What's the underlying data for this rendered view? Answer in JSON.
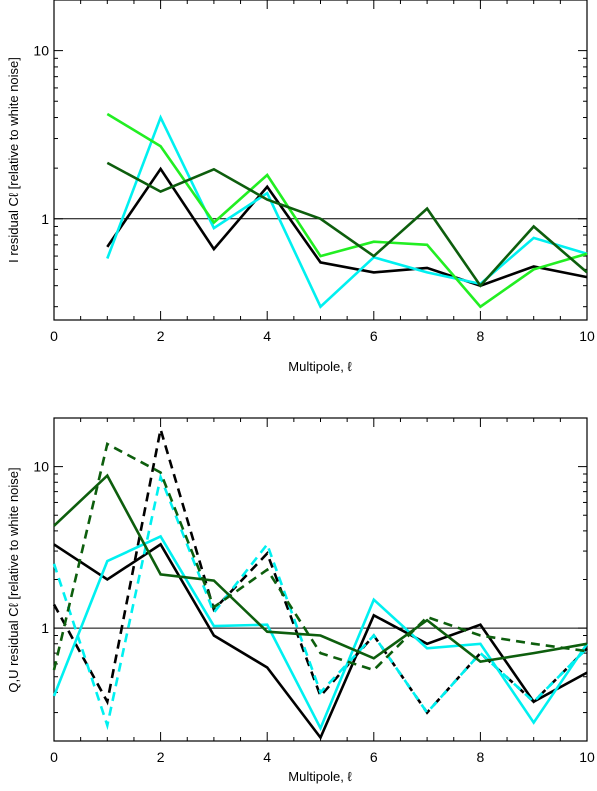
{
  "chart_data": [
    {
      "type": "line",
      "ylabel": "I residual Cℓ [relative to white noise]",
      "xlabel": "Multipole, ℓ",
      "xlim": [
        0,
        10
      ],
      "ylim": [
        0.25,
        20
      ],
      "yscale": "log",
      "xticks": [
        0,
        2,
        4,
        6,
        8,
        10
      ],
      "xtick_labels": [
        "0",
        "2",
        "4",
        "6",
        "8",
        "10"
      ],
      "yticks": [
        1,
        10
      ],
      "ytick_labels": [
        "1",
        "10"
      ],
      "reference_line": 1,
      "grid": false,
      "series": [
        {
          "color": "#000000",
          "dash": false,
          "x": [
            1,
            2,
            3,
            4,
            5,
            6,
            7,
            8,
            9,
            10
          ],
          "y": [
            0.68,
            1.98,
            0.66,
            1.55,
            0.55,
            0.48,
            0.51,
            0.4,
            0.52,
            0.45
          ]
        },
        {
          "color": "#00f0f0",
          "dash": false,
          "x": [
            1,
            2,
            3,
            4,
            5,
            6,
            7,
            8,
            9,
            10
          ],
          "y": [
            0.58,
            4.0,
            0.88,
            1.42,
            0.3,
            0.59,
            0.48,
            0.41,
            0.77,
            0.62
          ]
        },
        {
          "color": "#22ee22",
          "dash": false,
          "x": [
            1,
            2,
            3,
            4,
            5,
            6,
            7,
            8,
            9,
            10
          ],
          "y": [
            4.2,
            2.7,
            0.95,
            1.82,
            0.6,
            0.73,
            0.7,
            0.3,
            0.5,
            0.62
          ]
        },
        {
          "color": "#0d5e0d",
          "dash": false,
          "x": [
            1,
            2,
            3,
            4,
            5,
            6,
            7,
            8,
            9,
            10
          ],
          "y": [
            2.15,
            1.45,
            1.97,
            1.3,
            1.0,
            0.6,
            1.15,
            0.4,
            0.9,
            0.48
          ]
        }
      ]
    },
    {
      "type": "line",
      "ylabel": "Q,U residual Cℓ [relative to white noise]",
      "xlabel": "Multipole, ℓ",
      "xlim": [
        0,
        10
      ],
      "ylim": [
        0.2,
        20
      ],
      "yscale": "log",
      "xticks": [
        0,
        2,
        4,
        6,
        8,
        10
      ],
      "xtick_labels": [
        "0",
        "2",
        "4",
        "6",
        "8",
        "10"
      ],
      "yticks": [
        1,
        10
      ],
      "ytick_labels": [
        "1",
        "10"
      ],
      "reference_line": 1,
      "grid": false,
      "series": [
        {
          "color": "#000000",
          "dash": false,
          "x": [
            0,
            1,
            2,
            3,
            4,
            5,
            6,
            7,
            8,
            9,
            10
          ],
          "y": [
            3.3,
            2.0,
            3.3,
            0.9,
            0.57,
            0.21,
            1.2,
            0.8,
            1.05,
            0.35,
            0.53
          ]
        },
        {
          "color": "#000000",
          "dash": true,
          "x": [
            0,
            1,
            2,
            3,
            4,
            5,
            6,
            7,
            8,
            9,
            10
          ],
          "y": [
            1.4,
            0.35,
            17.0,
            1.3,
            2.9,
            0.38,
            0.9,
            0.3,
            0.7,
            0.35,
            0.75
          ]
        },
        {
          "color": "#00f0f0",
          "dash": false,
          "x": [
            0,
            1,
            2,
            3,
            4,
            5,
            6,
            7,
            8,
            9,
            10
          ],
          "y": [
            0.38,
            2.6,
            3.7,
            1.03,
            1.05,
            0.24,
            1.5,
            0.75,
            0.8,
            0.26,
            0.8
          ]
        },
        {
          "color": "#00f0f0",
          "dash": true,
          "x": [
            0,
            1,
            2,
            3,
            4,
            5,
            6,
            7,
            8,
            9,
            10
          ],
          "y": [
            2.5,
            0.25,
            8.6,
            1.25,
            3.3,
            0.4,
            0.9,
            0.3,
            0.7,
            0.35,
            0.75
          ]
        },
        {
          "color": "#0d5e0d",
          "dash": false,
          "x": [
            0,
            1,
            2,
            3,
            4,
            5,
            6,
            7,
            8,
            9,
            10
          ],
          "y": [
            4.3,
            8.8,
            2.15,
            1.97,
            0.95,
            0.9,
            0.65,
            1.12,
            0.62,
            0.7,
            0.8
          ]
        },
        {
          "color": "#0d5e0d",
          "dash": true,
          "x": [
            0,
            1,
            2,
            3,
            4,
            5,
            6,
            7,
            8,
            9,
            10
          ],
          "y": [
            0.55,
            13.8,
            9.2,
            1.35,
            2.3,
            0.7,
            0.55,
            1.17,
            0.9,
            0.8,
            0.72
          ]
        }
      ]
    }
  ]
}
